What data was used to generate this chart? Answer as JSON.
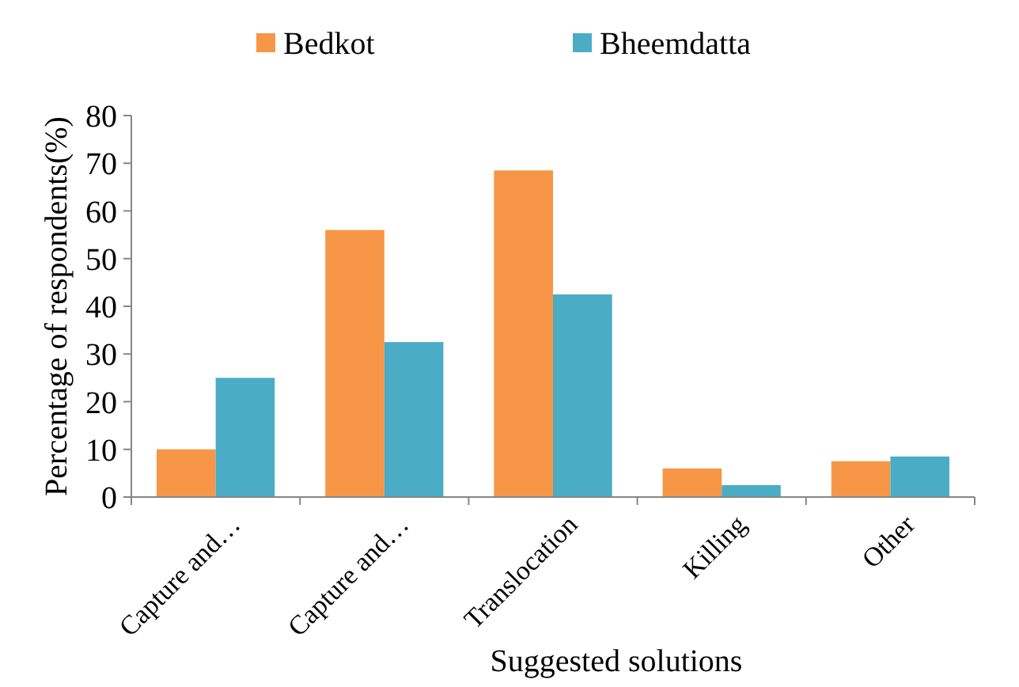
{
  "chart_data": {
    "type": "bar",
    "xlabel": "Suggested solutions",
    "ylabel": "Percentage of respondents(%)",
    "categories": [
      "Capture and…",
      "Capture and…",
      "Translocation",
      "Killing",
      "Other"
    ],
    "series": [
      {
        "name": "Bedkot",
        "color": "#f79646",
        "values": [
          10,
          56,
          68.5,
          6,
          7.5
        ]
      },
      {
        "name": "Bheemdatta",
        "color": "#4bacc6",
        "values": [
          25,
          32.5,
          42.5,
          2.5,
          8.5
        ]
      }
    ],
    "ylim": [
      0,
      80
    ],
    "yticks": [
      0,
      10,
      20,
      30,
      40,
      50,
      60,
      70,
      80
    ],
    "grid": false,
    "legend": "top"
  }
}
